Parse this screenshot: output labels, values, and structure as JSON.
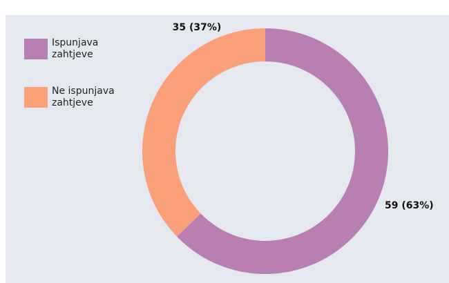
{
  "chart_data": {
    "type": "donut",
    "categories": [
      "Ispunjava zahtjeve",
      "Ne ispunjava zahtjeve"
    ],
    "values": [
      59,
      35
    ],
    "value_labels": [
      "59 (63%)",
      "35 (37%)"
    ],
    "colors": [
      "#b87fb3",
      "#f9a07a"
    ],
    "legend": "top-left"
  }
}
